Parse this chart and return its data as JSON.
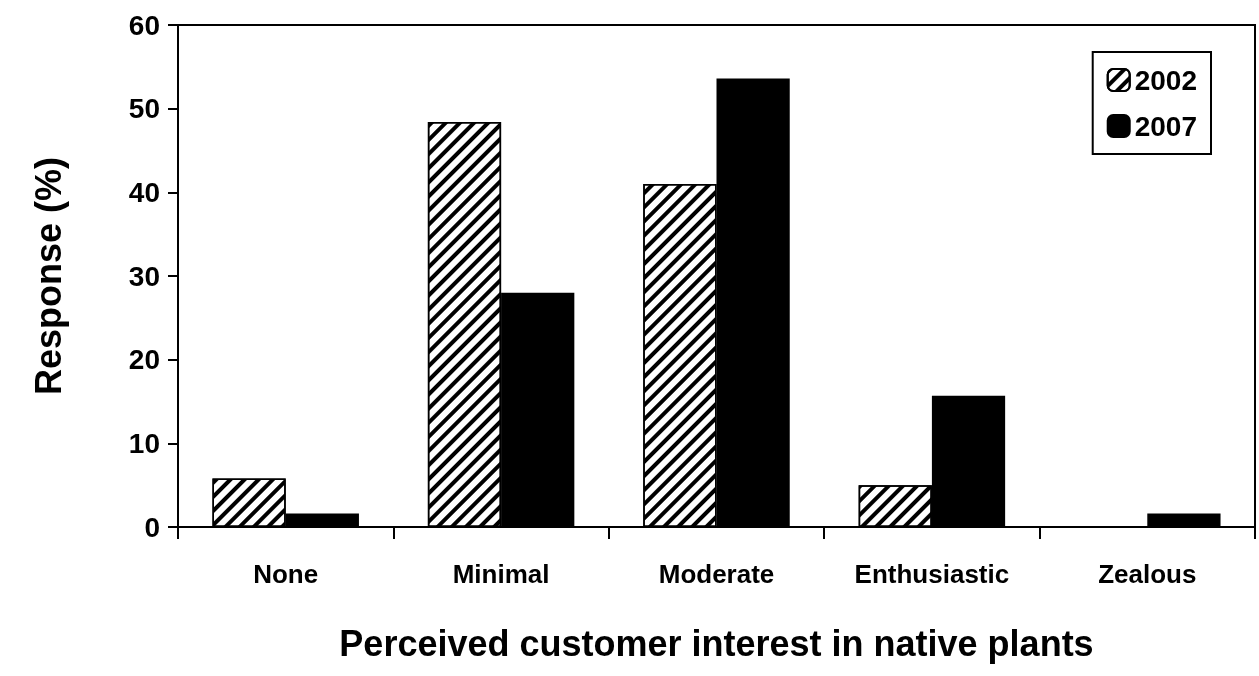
{
  "chart_data": {
    "type": "bar",
    "xlabel": "Perceived customer interest in native plants",
    "ylabel": "Response (%)",
    "categories": [
      "None",
      "Minimal",
      "Moderate",
      "Enthusiastic",
      "Zealous"
    ],
    "series": [
      {
        "name": "2002",
        "color": "#ffffff",
        "values": [
          5.8,
          48.4,
          41.0,
          5.0,
          null
        ]
      },
      {
        "name": "2007",
        "color": "#000000",
        "values": [
          1.6,
          28.0,
          53.6,
          15.7,
          1.6
        ]
      }
    ],
    "ylim": [
      0,
      60
    ],
    "yticks": [
      0,
      10,
      20,
      30,
      40,
      50,
      60
    ],
    "grid": false,
    "legend": "top right"
  }
}
